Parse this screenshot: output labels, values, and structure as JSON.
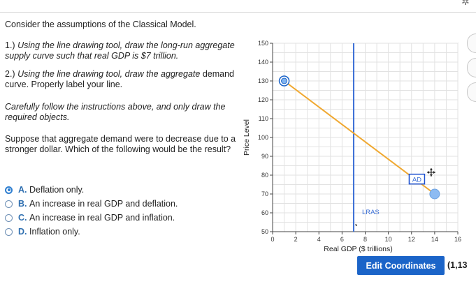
{
  "intro": "Consider the assumptions of the Classical Model.",
  "inst1_num": "1.) ",
  "inst1_italic": "Using the line drawing tool, draw the long-run aggregate supply curve such that real GDP is $7 trillion.",
  "inst2_num": "2.) ",
  "inst2_italic": "Using the line drawing tool, draw the aggregate",
  "inst2_rest": " demand curve. Properly label your line.",
  "inst3": "Carefully follow the instructions above, and only draw the required objects.",
  "question": "Suppose that aggregate demand were to decrease due to a stronger dollar. Which of the following would be the result?",
  "choices": [
    {
      "letter": "A.",
      "text": "Deflation only.",
      "selected": true
    },
    {
      "letter": "B.",
      "text": "An increase in real GDP and deflation.",
      "selected": false
    },
    {
      "letter": "C.",
      "text": "An increase in real GDP and inflation.",
      "selected": false
    },
    {
      "letter": "D.",
      "text": "Inflation only.",
      "selected": false
    }
  ],
  "chart_data": {
    "type": "line",
    "xlabel": "Real GDP ($ trillions)",
    "ylabel": "Price Level",
    "xlim": [
      0,
      16
    ],
    "ylim": [
      50,
      150
    ],
    "x_ticks": [
      0,
      2,
      4,
      6,
      8,
      10,
      12,
      14,
      16
    ],
    "y_ticks": [
      50,
      60,
      70,
      80,
      90,
      100,
      110,
      120,
      130,
      140,
      150
    ],
    "lines": [
      {
        "name": "LRAS",
        "color": "#3b6fd6",
        "points": [
          [
            7,
            50
          ],
          [
            7,
            150
          ]
        ]
      },
      {
        "name": "AD",
        "color": "#f0a830",
        "points": [
          [
            1,
            130
          ],
          [
            14,
            70
          ]
        ]
      }
    ],
    "grid": true
  },
  "colors": {
    "accent": "#1b64c8",
    "lras": "#3b6fd6",
    "ad": "#f0a830"
  },
  "edit_button": "Edit Coordinates",
  "coord_readout": "(1,13"
}
